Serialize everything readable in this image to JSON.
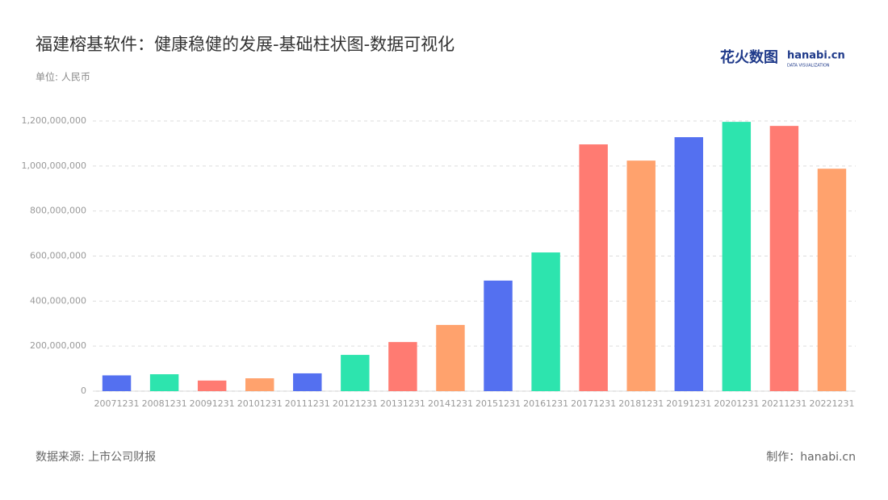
{
  "chart_data": {
    "type": "bar",
    "title": "福建榕基软件：健康稳健的发展-基础柱状图-数据可视化",
    "subtitle": "单位: 人民币",
    "source": "数据来源: 上市公司财报",
    "credit": "制作：hanabi.cn",
    "logo": {
      "text": "花火数图",
      "brand": "hanabi.cn",
      "tagline": "DATA VISUALIZATION"
    },
    "categories": [
      "20071231",
      "20081231",
      "20091231",
      "20101231",
      "20111231",
      "20121231",
      "20131231",
      "20141231",
      "20151231",
      "20161231",
      "20171231",
      "20181231",
      "20191231",
      "20201231",
      "20211231",
      "20221231"
    ],
    "values": [
      70000000,
      75000000,
      47000000,
      57000000,
      79000000,
      161000000,
      218000000,
      294000000,
      491000000,
      616000000,
      1096000000,
      1024000000,
      1128000000,
      1196000000,
      1178000000,
      988000000
    ],
    "colors": [
      "#5470f0",
      "#2de4ae",
      "#ff7b72",
      "#ffa26d"
    ],
    "ylim": [
      0,
      1200000000
    ],
    "yticks": [
      0,
      {
        "value": 200000000,
        "label": "200,000,000"
      },
      {
        "value": 400000000,
        "label": "400,000,000"
      },
      {
        "value": 600000000,
        "label": "600,000,000"
      },
      {
        "value": 800000000,
        "label": "800,000,000"
      },
      {
        "value": 1000000000,
        "label": "1,000,000,000"
      },
      {
        "value": 1200000000,
        "label": "1,200,000,000"
      }
    ],
    "grid": true
  }
}
